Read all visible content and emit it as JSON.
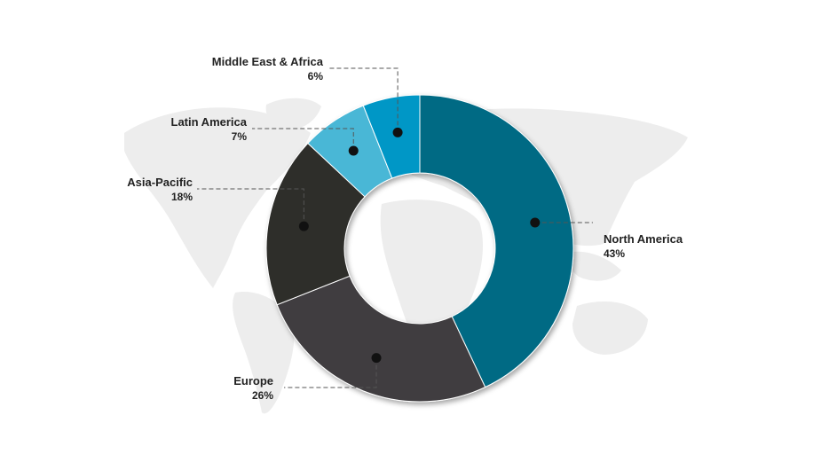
{
  "chart_data": {
    "type": "pie",
    "variant": "donut",
    "title": "",
    "start_angle_deg": 0,
    "direction": "clockwise",
    "slices": [
      {
        "label": "North America",
        "value": 43,
        "value_text": "43%",
        "color": "#006a84"
      },
      {
        "label": "Europe",
        "value": 26,
        "value_text": "26%",
        "color": "#3f3e40"
      },
      {
        "label": "Asia-Pacific",
        "value": 18,
        "value_text": "18%",
        "color": "#2e2d2b"
      },
      {
        "label": "Latin America",
        "value": 7,
        "value_text": "7%",
        "color": "#4ab7d6"
      },
      {
        "label": "Middle East & Africa",
        "value": 6,
        "value_text": "6%",
        "color": "#0097c6"
      }
    ],
    "legend": "none",
    "background_image": "world-map"
  }
}
